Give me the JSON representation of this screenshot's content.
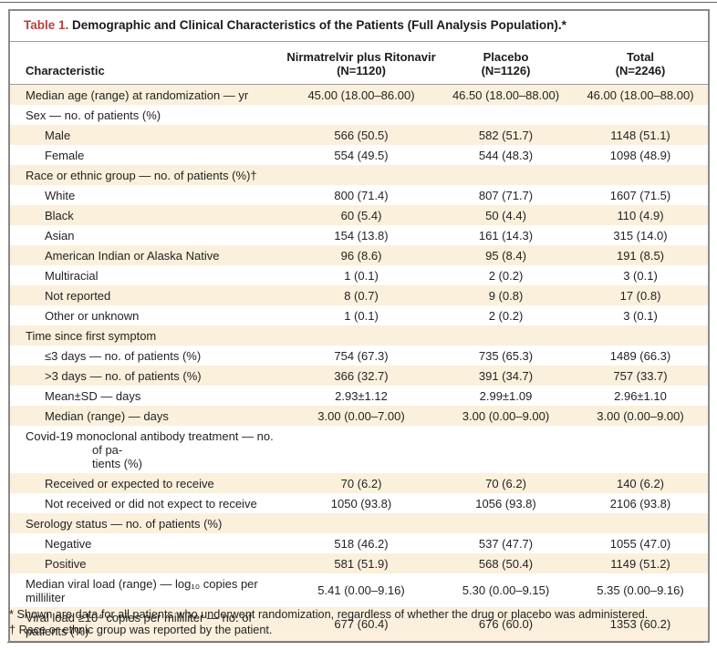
{
  "title": {
    "label": "Table 1.",
    "text": " Demographic and Clinical Characteristics of the Patients (Full Analysis Population).*"
  },
  "columns": {
    "characteristic": "Characteristic",
    "groups": [
      {
        "line1": "Nirmatrelvir plus Ritonavir",
        "line2": "(N=1120)"
      },
      {
        "line1": "Placebo",
        "line2": "(N=1126)"
      },
      {
        "line1": "Total",
        "line2": "(N=2246)"
      }
    ]
  },
  "rows": [
    {
      "label": "Median age (range) at randomization — yr",
      "indent": 0,
      "values": [
        "45.00 (18.00–86.00)",
        "46.50 (18.00–88.00)",
        "46.00 (18.00–88.00)"
      ]
    },
    {
      "label": "Sex — no. of patients (%)",
      "indent": 0,
      "values": [
        "",
        "",
        ""
      ]
    },
    {
      "label": "Male",
      "indent": 1,
      "values": [
        "566 (50.5)",
        "582 (51.7)",
        "1148 (51.1)"
      ]
    },
    {
      "label": "Female",
      "indent": 1,
      "values": [
        "554 (49.5)",
        "544 (48.3)",
        "1098 (48.9)"
      ]
    },
    {
      "label": "Race or ethnic group — no. of patients (%)†",
      "indent": 0,
      "values": [
        "",
        "",
        ""
      ]
    },
    {
      "label": "White",
      "indent": 1,
      "values": [
        "800 (71.4)",
        "807 (71.7)",
        "1607 (71.5)"
      ]
    },
    {
      "label": "Black",
      "indent": 1,
      "values": [
        "60 (5.4)",
        "50 (4.4)",
        "110 (4.9)"
      ]
    },
    {
      "label": "Asian",
      "indent": 1,
      "values": [
        "154 (13.8)",
        "161 (14.3)",
        "315 (14.0)"
      ]
    },
    {
      "label": "American Indian or Alaska Native",
      "indent": 1,
      "values": [
        "96 (8.6)",
        "95 (8.4)",
        "191 (8.5)"
      ]
    },
    {
      "label": "Multiracial",
      "indent": 1,
      "values": [
        "1 (0.1)",
        "2 (0.2)",
        "3 (0.1)"
      ]
    },
    {
      "label": "Not reported",
      "indent": 1,
      "values": [
        "8 (0.7)",
        "9 (0.8)",
        "17 (0.8)"
      ]
    },
    {
      "label": "Other or unknown",
      "indent": 1,
      "values": [
        "1 (0.1)",
        "2 (0.2)",
        "3 (0.1)"
      ]
    },
    {
      "label": "Time since first symptom",
      "indent": 0,
      "values": [
        "",
        "",
        ""
      ]
    },
    {
      "label": "≤3 days — no. of patients (%)",
      "indent": 1,
      "values": [
        "754 (67.3)",
        "735 (65.3)",
        "1489 (66.3)"
      ]
    },
    {
      "label": ">3 days — no. of patients (%)",
      "indent": 1,
      "values": [
        "366 (32.7)",
        "391 (34.7)",
        "757 (33.7)"
      ]
    },
    {
      "label": "Mean±SD — days",
      "indent": 1,
      "values": [
        "2.93±1.12",
        "2.99±1.09",
        "2.96±1.10"
      ]
    },
    {
      "label": "Median (range) — days",
      "indent": 1,
      "values": [
        "3.00 (0.00–7.00)",
        "3.00 (0.00–9.00)",
        "3.00 (0.00–9.00)"
      ]
    },
    {
      "label": "Covid-19 monoclonal antibody treatment — no. of pa-\ntients (%)",
      "indent": 0,
      "hang": true,
      "values": [
        "",
        "",
        ""
      ]
    },
    {
      "label": "Received or expected to receive",
      "indent": 1,
      "values": [
        "70 (6.2)",
        "70 (6.2)",
        "140 (6.2)"
      ]
    },
    {
      "label": "Not received or did not expect to receive",
      "indent": 1,
      "values": [
        "1050 (93.8)",
        "1056 (93.8)",
        "2106 (93.8)"
      ]
    },
    {
      "label": "Serology status — no. of patients (%)",
      "indent": 0,
      "values": [
        "",
        "",
        ""
      ]
    },
    {
      "label": "Negative",
      "indent": 1,
      "values": [
        "518 (46.2)",
        "537 (47.7)",
        "1055 (47.0)"
      ]
    },
    {
      "label": "Positive",
      "indent": 1,
      "values": [
        "581 (51.9)",
        "568 (50.4)",
        "1149 (51.2)"
      ]
    },
    {
      "label": "Median viral load (range) — log₁₀ copies per milliliter",
      "indent": 0,
      "values": [
        "5.41 (0.00–9.16)",
        "5.30 (0.00–9.15)",
        "5.35 (0.00–9.16)"
      ]
    },
    {
      "label": "Viral load ≥10⁴ copies per milliliter — no. of patients (%)",
      "indent": 0,
      "values": [
        "677 (60.4)",
        "676 (60.0)",
        "1353 (60.2)"
      ]
    }
  ],
  "footnotes": [
    "* Shown are data for all patients who underwent randomization, regardless of whether the drug or placebo was administered.",
    "† Race or ethnic group was reported by the patient."
  ],
  "colors": {
    "accent_red": "#b5423c",
    "row_stripe": "#faf0dc",
    "card_border": "#8a8a8a"
  }
}
